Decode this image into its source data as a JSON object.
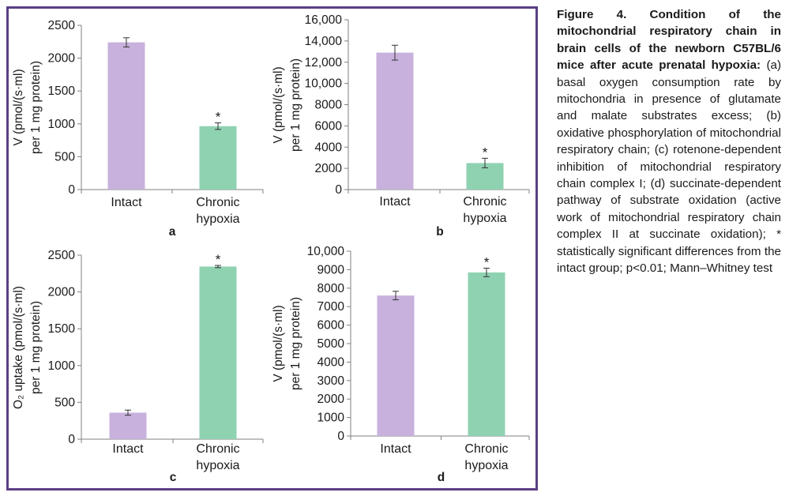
{
  "colors": {
    "frame": "#5b3f86",
    "intact": "#c8b1dc",
    "hypoxia": "#8fd2b2",
    "axis": "#808080",
    "text": "#1a1a1a"
  },
  "caption": {
    "bold": "Figure 4. Condition of the mitochondrial respiratory chain in brain cells of the newborn C57BL/6 mice after acute prenatal hypoxia:",
    "body": "(a) basal oxygen consumption rate by mitochondria in presence of glutamate and malate substrates excess; (b) oxidative phosphorylation of mitochondrial respiratory chain; (c) rotenone-dependent inhibition of mitochondrial respiratory chain complex I; (d) succinate-dependent pathway of substrate oxidation (active work of mitochondrial respiratory chain complex II at succinate oxidation); * statistically significant differences from the intact group; p<0.01; Mann–Whitney test"
  },
  "chart_data": [
    {
      "type": "bar",
      "panel_label": "a",
      "ylabel_lines": [
        "V (pmol/(s·ml)",
        "per 1 mg protein)"
      ],
      "categories": [
        [
          "Intact"
        ],
        [
          "Chronic",
          "hypoxia"
        ]
      ],
      "values": [
        2240,
        965
      ],
      "errors": [
        70,
        50
      ],
      "significance": [
        "",
        "*"
      ],
      "ylim": [
        0,
        2500
      ],
      "yticks": [
        0,
        500,
        1000,
        1500,
        2000,
        2500
      ],
      "ytick_labels": [
        "0",
        "500",
        "1000",
        "1500",
        "2000",
        "2500"
      ]
    },
    {
      "type": "bar",
      "panel_label": "b",
      "ylabel_lines": [
        "V (pmol/(s·ml)",
        "per 1 mg protein)"
      ],
      "categories": [
        [
          "Intact"
        ],
        [
          "Chronic",
          "hypoxia"
        ]
      ],
      "values": [
        12900,
        2500
      ],
      "errors": [
        700,
        450
      ],
      "significance": [
        "",
        "*"
      ],
      "ylim": [
        0,
        16000
      ],
      "yticks": [
        0,
        2000,
        4000,
        6000,
        8000,
        10000,
        12000,
        14000,
        16000
      ],
      "ytick_labels": [
        "0",
        "2000",
        "4000",
        "6000",
        "8000",
        "10,000",
        "12,000",
        "14,000",
        "16,000"
      ]
    },
    {
      "type": "bar",
      "panel_label": "c",
      "ylabel_lines": [
        "O₂ uptake (pmol/(s·ml)",
        "per 1 mg protein)"
      ],
      "categories": [
        [
          "Intact"
        ],
        [
          "Chronic",
          "hypoxia"
        ]
      ],
      "values": [
        360,
        2345
      ],
      "errors": [
        35,
        15
      ],
      "significance": [
        "",
        "*"
      ],
      "ylim": [
        0,
        2500
      ],
      "yticks": [
        0,
        500,
        1000,
        1500,
        2000,
        2500
      ],
      "ytick_labels": [
        "0",
        "500",
        "1000",
        "1500",
        "2000",
        "2500"
      ]
    },
    {
      "type": "bar",
      "panel_label": "d",
      "ylabel_lines": [
        "V (pmol/(s·ml)",
        "per 1 mg protein)"
      ],
      "categories": [
        [
          "Intact"
        ],
        [
          "Chronic",
          "hypoxia"
        ]
      ],
      "values": [
        7600,
        8850
      ],
      "errors": [
        230,
        230
      ],
      "significance": [
        "",
        "*"
      ],
      "ylim": [
        0,
        10000
      ],
      "yticks": [
        0,
        1000,
        2000,
        3000,
        4000,
        5000,
        6000,
        7000,
        8000,
        9000,
        10000
      ],
      "ytick_labels": [
        "0",
        "1000",
        "2000",
        "3000",
        "4000",
        "5000",
        "6000",
        "7000",
        "8000",
        "9000",
        "10,000"
      ]
    }
  ]
}
